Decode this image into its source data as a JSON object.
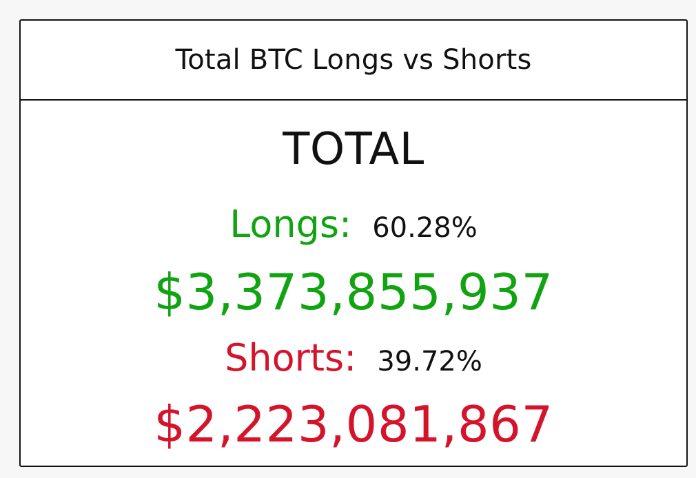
{
  "card": {
    "title": "Total BTC Longs vs Shorts"
  },
  "summary": {
    "heading": "TOTAL",
    "longs": {
      "label": "Longs:",
      "percent": "60.28%",
      "amount": "$3,373,855,937",
      "color": "#12a312"
    },
    "shorts": {
      "label": "Shorts:",
      "percent": "39.72%",
      "amount": "$2,223,081,867",
      "color": "#d4142a"
    }
  }
}
